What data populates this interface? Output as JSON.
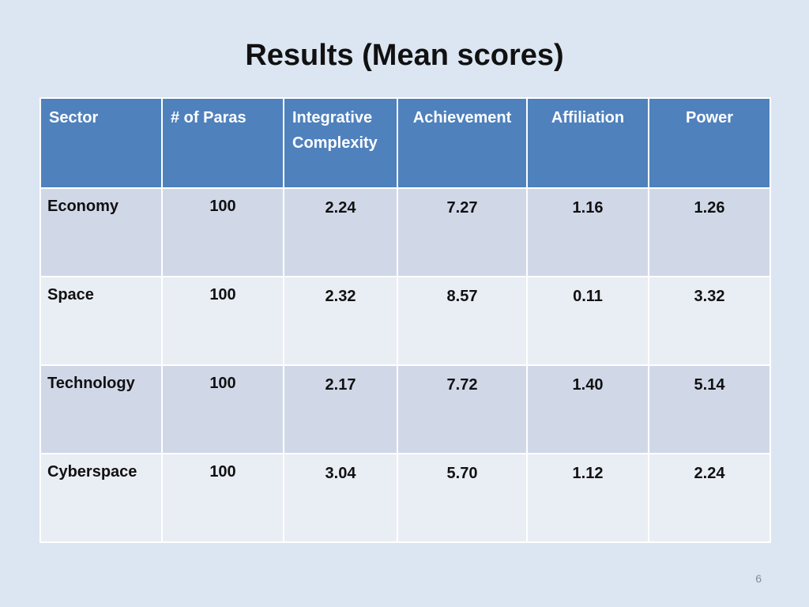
{
  "slide": {
    "title": "Results (Mean scores)",
    "page_number": "6"
  },
  "table": {
    "headers": [
      "Sector",
      "# of Paras",
      "Integrative Complexity",
      "Achievement",
      "Affiliation",
      "Power"
    ],
    "rows": [
      [
        "Economy",
        "100",
        "2.24",
        "7.27",
        "1.16",
        "1.26"
      ],
      [
        "Space",
        "100",
        "2.32",
        "8.57",
        "0.11",
        "3.32"
      ],
      [
        "Technology",
        "100",
        "2.17",
        "7.72",
        "1.40",
        "5.14"
      ],
      [
        "Cyberspace",
        "100",
        "3.04",
        "5.70",
        "1.12",
        "2.24"
      ]
    ]
  },
  "colors": {
    "background": "#dce6f2",
    "header_fill": "#4f81bd",
    "row_odd": "#d0d8e8",
    "row_even": "#e9edf4"
  }
}
